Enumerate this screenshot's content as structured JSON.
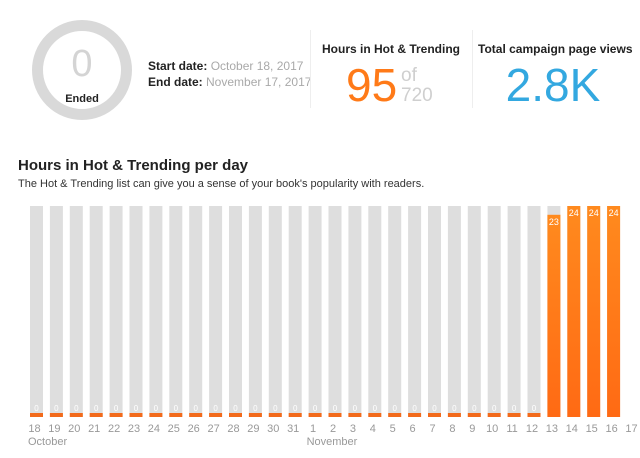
{
  "campaign": {
    "ring_value": "0",
    "status": "Ended",
    "start_label": "Start date:",
    "start_value": "October 18, 2017",
    "end_label": "End date:",
    "end_value": "November 17, 2017"
  },
  "hot_trending": {
    "title": "Hours in Hot & Trending",
    "value": "95",
    "of_label": "of",
    "total": "720"
  },
  "page_views": {
    "title": "Total campaign page views",
    "value": "2.8K"
  },
  "section": {
    "title": "Hours in Hot & Trending per day",
    "subtitle": "The Hot & Trending list can give you a sense of your book's popularity with readers."
  },
  "colors": {
    "bar_track": "#dedede",
    "bar_zero": "#f26a1b",
    "bar_fill_top": "#ff8a1e",
    "bar_fill_bottom": "#ff6a14",
    "accent_orange": "#ff7a18",
    "accent_blue": "#33a8e0"
  },
  "chart_data": {
    "type": "bar",
    "title": "Hours in Hot & Trending per day",
    "xlabel": "",
    "ylabel": "",
    "ylim": [
      0,
      24
    ],
    "grid": false,
    "categories": [
      "18",
      "19",
      "20",
      "21",
      "22",
      "23",
      "24",
      "25",
      "26",
      "27",
      "28",
      "29",
      "30",
      "31",
      "1",
      "2",
      "3",
      "4",
      "5",
      "6",
      "7",
      "8",
      "9",
      "10",
      "11",
      "12",
      "13",
      "14",
      "15",
      "16"
    ],
    "values": [
      0,
      0,
      0,
      0,
      0,
      0,
      0,
      0,
      0,
      0,
      0,
      0,
      0,
      0,
      0,
      0,
      0,
      0,
      0,
      0,
      0,
      0,
      0,
      0,
      0,
      0,
      23,
      24,
      24,
      24
    ],
    "data_labels": [
      "0",
      "0",
      "0",
      "0",
      "0",
      "0",
      "0",
      "0",
      "0",
      "0",
      "0",
      "0",
      "0",
      "0",
      "0",
      "0",
      "0",
      "0",
      "0",
      "0",
      "0",
      "0",
      "0",
      "0",
      "0",
      "0",
      "23",
      "24",
      "24",
      "24"
    ],
    "extra_tick": "17",
    "month_labels": [
      {
        "label": "October",
        "index": 0
      },
      {
        "label": "November",
        "index": 14
      }
    ]
  }
}
